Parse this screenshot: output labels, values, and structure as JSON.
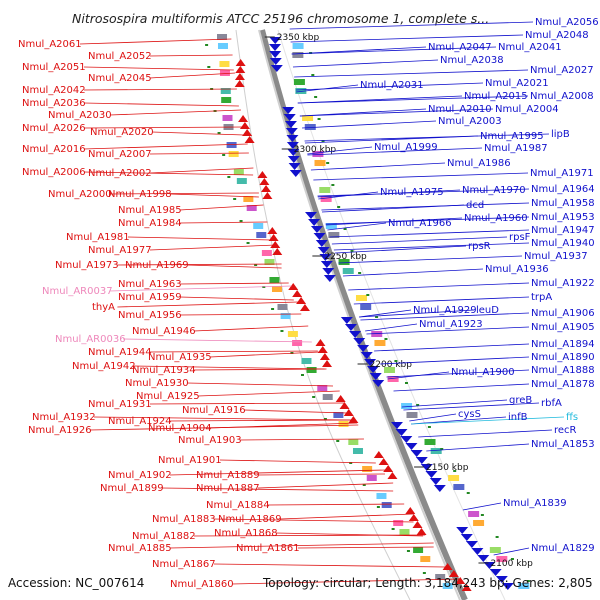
{
  "title": "Nitrosospira multiformis ATCC 25196 chromosome 1, complete s...",
  "footer": {
    "accession": "Accession: NC_007614",
    "topology": "Topology: circular; Length: 3,184,243 bp; Genes: 2,805"
  },
  "colors": {
    "forward": "#dd1111",
    "reverse": "#1111cc",
    "rna_pink": "#ee88bb",
    "rna_cyan": "#22bbdd",
    "backbone": "#888888",
    "tick": "#228822"
  },
  "kbp_marks": [
    "2350 kbp",
    "2300 kbp",
    "2250 kbp",
    "2200 kbp",
    "2150 kbp",
    "2100 kbp"
  ],
  "left_labels": [
    "Nmul_A2061",
    "Nmul_A2052",
    "Nmul_A2051",
    "Nmul_A2045",
    "Nmul_A2042",
    "Nmul_A2036",
    "Nmul_A2030",
    "Nmul_A2026",
    "Nmul_A2020",
    "Nmul_A2016",
    "Nmul_A2007",
    "Nmul_A2006",
    "Nmul_A2002",
    "Nmul_A2000",
    "Nmul_A1998",
    "Nmul_A1985",
    "Nmul_A1984",
    "Nmul_A1981",
    "Nmul_A1977",
    "Nmul_A1973",
    "Nmul_A1969",
    "Nmul_AR0037",
    "Nmul_A1963",
    "Nmul_A1959",
    "thyA",
    "Nmul_A1956",
    "Nmul_AR0036",
    "Nmul_A1946",
    "Nmul_A1944",
    "Nmul_A1942",
    "Nmul_A1935",
    "Nmul_A1934",
    "Nmul_A1930",
    "Nmul_A1925",
    "Nmul_A1931",
    "Nmul_A1932",
    "Nmul_A1926",
    "Nmul_A1924",
    "Nmul_A1916",
    "Nmul_A1904",
    "Nmul_A1903",
    "Nmul_A1901",
    "Nmul_A1902",
    "Nmul_A1889",
    "Nmul_A1899",
    "Nmul_A1887",
    "Nmul_A1884",
    "Nmul_A1883",
    "Nmul_A1869",
    "Nmul_A1882",
    "Nmul_A1868",
    "Nmul_A1885",
    "Nmul_A1861",
    "Nmul_A1867",
    "Nmul_A1860"
  ],
  "right_labels": [
    "Nmul_A2056",
    "Nmul_A2048",
    "Nmul_A2047",
    "Nmul_A2041",
    "Nmul_A2038",
    "Nmul_A2027",
    "Nmul_A2031",
    "Nmul_A2021",
    "Nmul_A2015",
    "Nmul_A2008",
    "Nmul_A2010",
    "Nmul_A2004",
    "Nmul_A2003",
    "Nmul_A1995",
    "lipB",
    "Nmul_A1999",
    "Nmul_A1987",
    "Nmul_A1986",
    "Nmul_A1971",
    "Nmul_A1975",
    "Nmul_A1970",
    "Nmul_A1964",
    "dcd",
    "Nmul_A1958",
    "Nmul_A1966",
    "Nmul_A1960",
    "Nmul_A1953",
    "rpsF",
    "Nmul_A1947",
    "rpsR",
    "Nmul_A1940",
    "Nmul_A1937",
    "Nmul_A1936",
    "Nmul_A1922",
    "trpA",
    "Nmul_A1929",
    "leuD",
    "Nmul_A1906",
    "Nmul_A1923",
    "Nmul_A1905",
    "Nmul_A1894",
    "Nmul_A1890",
    "Nmul_A1900",
    "Nmul_A1888",
    "Nmul_A1878",
    "greB",
    "rbfA",
    "cysS",
    "infB",
    "ffs",
    "recR",
    "Nmul_A1853",
    "Nmul_A1839",
    "Nmul_A1829"
  ]
}
